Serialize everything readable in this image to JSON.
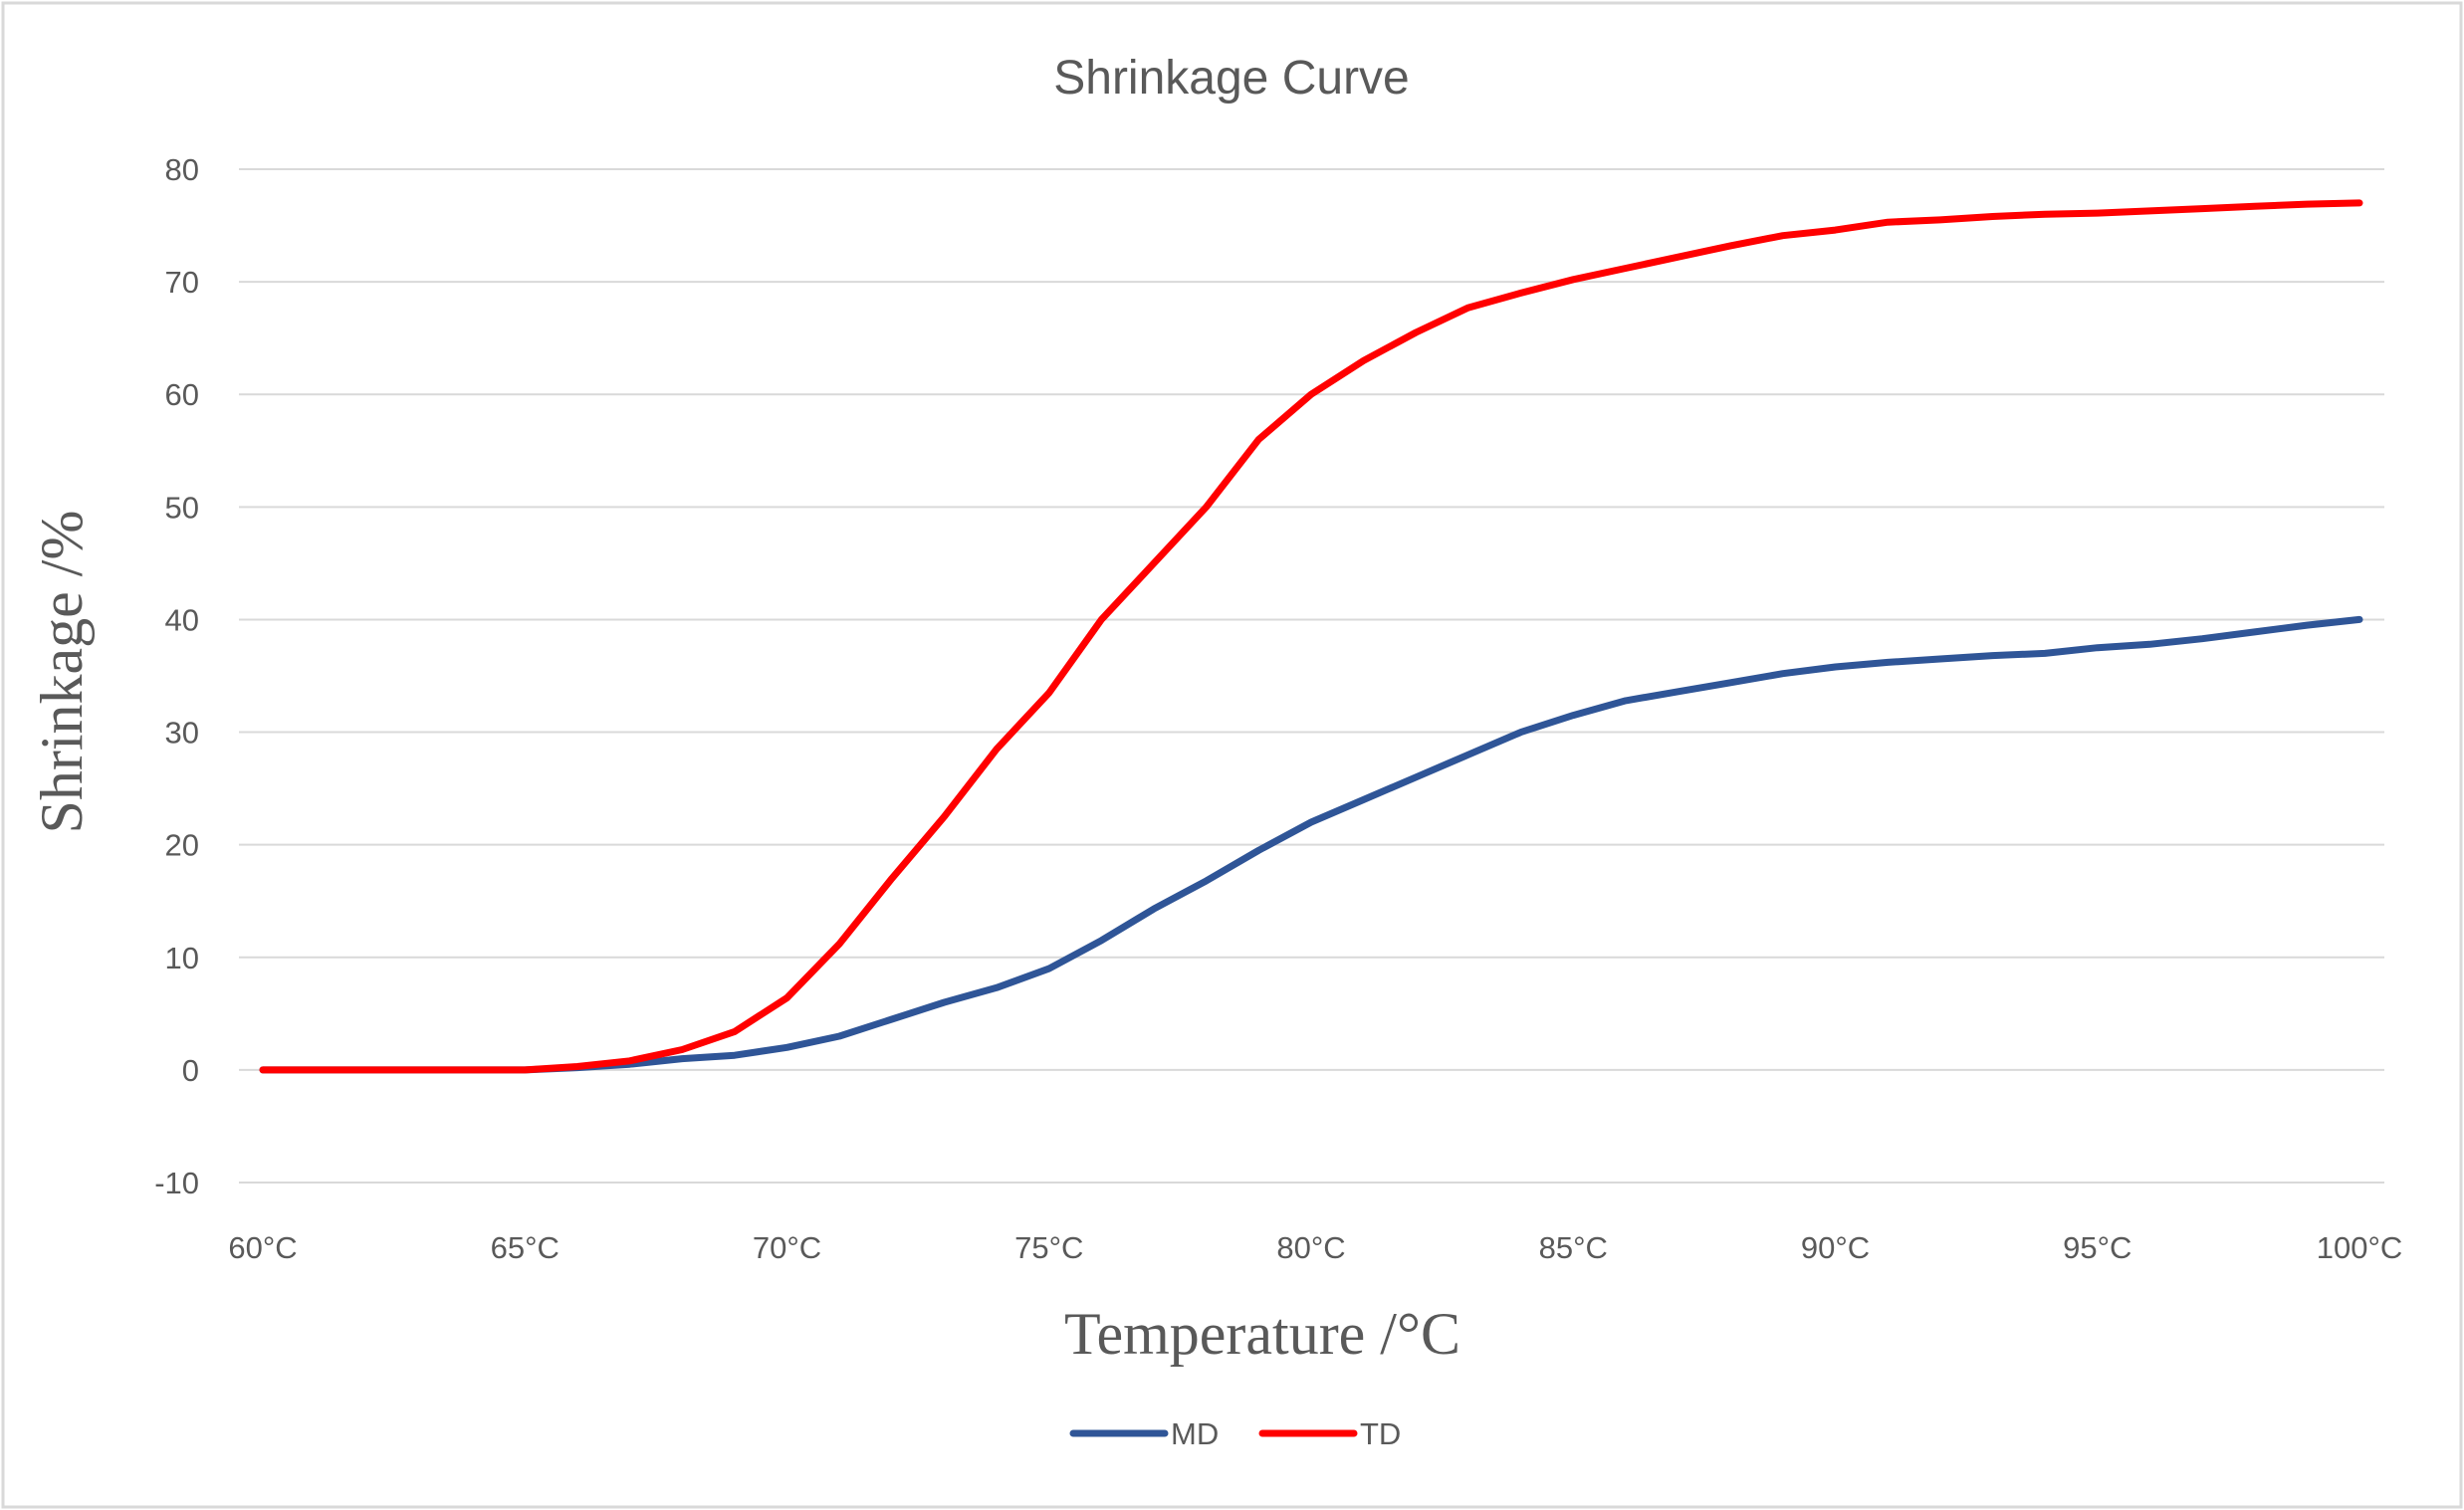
{
  "chart_data": {
    "type": "line",
    "title": "Shrinkage Curve",
    "xlabel": "Temperature /°C",
    "ylabel": "Shrinkage /%",
    "x": [
      60,
      61,
      62,
      63,
      64,
      65,
      66,
      67,
      68,
      69,
      70,
      71,
      72,
      73,
      74,
      75,
      76,
      77,
      78,
      79,
      80,
      81,
      82,
      83,
      84,
      85,
      86,
      87,
      88,
      89,
      90,
      91,
      92,
      93,
      94,
      95,
      96,
      97,
      98,
      99,
      100
    ],
    "xlim": [
      60,
      100
    ],
    "ylim": [
      -10,
      80
    ],
    "x_ticks": [
      60,
      65,
      70,
      75,
      80,
      85,
      90,
      95,
      100
    ],
    "x_tick_labels": [
      "60°C",
      "65°C",
      "70°C",
      "75°C",
      "80°C",
      "85°C",
      "90°C",
      "95°C",
      "100°C"
    ],
    "y_ticks": [
      -10,
      0,
      10,
      20,
      30,
      40,
      50,
      60,
      70,
      80
    ],
    "y_tick_labels": [
      "-10",
      "0",
      "10",
      "20",
      "30",
      "40",
      "50",
      "60",
      "70",
      "80"
    ],
    "grid": true,
    "legend_position": "bottom",
    "series": [
      {
        "name": "MD",
        "color": "#2F5597",
        "values": [
          0,
          0,
          0,
          0,
          0,
          0,
          0.2,
          0.5,
          1,
          1.3,
          2,
          3,
          4.5,
          6,
          7.3,
          9,
          11.5,
          14.3,
          16.8,
          19.5,
          22,
          24,
          26,
          28,
          30,
          31.5,
          32.8,
          33.6,
          34.4,
          35.2,
          35.8,
          36.2,
          36.5,
          36.8,
          37,
          37.5,
          37.8,
          38.3,
          38.9,
          39.5,
          40
        ]
      },
      {
        "name": "TD",
        "color": "#FF0000",
        "values": [
          0,
          0,
          0,
          0,
          0,
          0,
          0.3,
          0.8,
          1.8,
          3.4,
          6.4,
          11.2,
          17,
          22.5,
          28.5,
          33.5,
          40,
          45,
          50,
          56,
          60,
          63,
          65.5,
          67.7,
          69,
          70.2,
          71.2,
          72.2,
          73.2,
          74.1,
          74.6,
          75.3,
          75.5,
          75.8,
          76,
          76.1,
          76.3,
          76.5,
          76.7,
          76.9,
          77
        ]
      }
    ]
  }
}
